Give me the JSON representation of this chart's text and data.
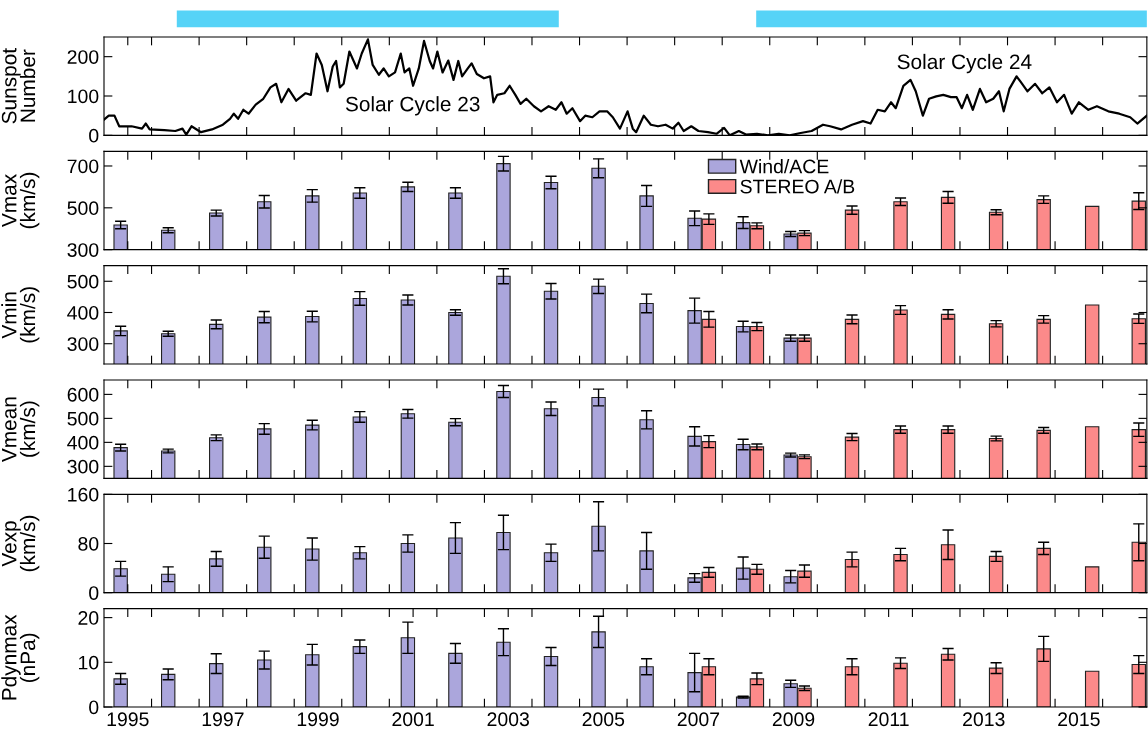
{
  "chart_data": [
    {
      "type": "line",
      "ylabel": "Sunspot\nNumber",
      "xlim": [
        1994.5,
        2016.43
      ],
      "ylim": [
        0,
        250
      ],
      "yticks": [
        0,
        100,
        200
      ],
      "tick_labels": "y",
      "legend": false,
      "grid": false,
      "xticks": [
        {
          "value": 1995,
          "label": null
        },
        {
          "value": 1995.5,
          "label": null
        },
        {
          "value": 1996.5,
          "label": null
        },
        {
          "value": 1997.5,
          "label": null
        },
        {
          "value": 1998.5,
          "label": null
        },
        {
          "value": 1999.5,
          "label": null
        },
        {
          "value": 2000.5,
          "label": null
        },
        {
          "value": 2001.5,
          "label": null
        },
        {
          "value": 2002.5,
          "label": null
        },
        {
          "value": 2003.5,
          "label": null
        },
        {
          "value": 2004.5,
          "label": null
        },
        {
          "value": 2005.5,
          "label": null
        },
        {
          "value": 2006.5,
          "label": null
        },
        {
          "value": 2007.5,
          "label": null
        },
        {
          "value": 2008.5,
          "label": null
        },
        {
          "value": 2009.5,
          "label": null
        },
        {
          "value": 2010.5,
          "label": null
        },
        {
          "value": 2011.5,
          "label": null
        },
        {
          "value": 2012.5,
          "label": null
        },
        {
          "value": 2013.5,
          "label": null
        },
        {
          "value": 2014.5,
          "label": null
        },
        {
          "value": 2015.5,
          "label": null
        }
      ],
      "annotations": [
        "Solar Cycle 23",
        "Solar Cycle 24"
      ],
      "series": [
        {
          "color": "#000000",
          "x": [
            1994.5,
            1994.6,
            1994.72,
            1994.82,
            1995.08,
            1995.3,
            1995.38,
            1995.46,
            1995.77,
            1996.0,
            1996.15,
            1996.23,
            1996.34,
            1996.54,
            1996.77,
            1997.0,
            1997.15,
            1997.23,
            1997.32,
            1997.43,
            1997.54,
            1997.69,
            1997.85,
            1998.0,
            1998.12,
            1998.23,
            1998.38,
            1998.54,
            1998.74,
            1998.85,
            1998.97,
            1999.08,
            1999.2,
            1999.31,
            1999.38,
            1999.46,
            1999.54,
            1999.66,
            1999.82,
            1999.92,
            2000.05,
            2000.15,
            2000.28,
            2000.38,
            2000.49,
            2000.62,
            2000.74,
            2000.82,
            2000.92,
            2001.0,
            2001.12,
            2001.23,
            2001.35,
            2001.42,
            2001.51,
            2001.62,
            2001.74,
            2001.85,
            2001.95,
            2002.03,
            2002.15,
            2002.23,
            2002.34,
            2002.49,
            2002.62,
            2002.69,
            2002.77,
            2002.92,
            2003.03,
            2003.15,
            2003.26,
            2003.38,
            2003.54,
            2003.69,
            2003.85,
            2004.0,
            2004.12,
            2004.23,
            2004.35,
            2004.51,
            2004.62,
            2004.77,
            2004.92,
            2005.08,
            2005.2,
            2005.35,
            2005.51,
            2005.62,
            2005.69,
            2005.85,
            2006.0,
            2006.15,
            2006.31,
            2006.46,
            2006.58,
            2006.69,
            2006.85,
            2007.0,
            2007.2,
            2007.38,
            2007.54,
            2007.66,
            2007.85,
            2008.0,
            2008.23,
            2008.46,
            2008.69,
            2008.92,
            2009.15,
            2009.38,
            2009.62,
            2009.77,
            2010.0,
            2010.23,
            2010.46,
            2010.62,
            2010.77,
            2010.92,
            2011.05,
            2011.15,
            2011.31,
            2011.46,
            2011.57,
            2011.72,
            2011.85,
            2012.0,
            2012.15,
            2012.31,
            2012.43,
            2012.54,
            2012.65,
            2012.77,
            2012.92,
            2013.05,
            2013.2,
            2013.32,
            2013.42,
            2013.54,
            2013.69,
            2013.77,
            2013.92,
            2014.08,
            2014.23,
            2014.38,
            2014.54,
            2014.69,
            2014.85,
            2015.0,
            2015.2,
            2015.38,
            2015.62,
            2015.85,
            2016.08,
            2016.23,
            2016.43
          ],
          "values": [
            40,
            50,
            50,
            23,
            23,
            17,
            30,
            15,
            13,
            11,
            17,
            2,
            23,
            8,
            15,
            27,
            42,
            55,
            42,
            65,
            55,
            78,
            93,
            122,
            131,
            84,
            118,
            88,
            107,
            103,
            208,
            179,
            112,
            175,
            189,
            122,
            131,
            213,
            170,
            208,
            244,
            179,
            154,
            170,
            150,
            160,
            208,
            160,
            170,
            126,
            170,
            240,
            189,
            170,
            213,
            160,
            190,
            141,
            189,
            150,
            170,
            183,
            156,
            145,
            150,
            84,
            103,
            107,
            126,
            103,
            80,
            93,
            74,
            61,
            74,
            65,
            84,
            55,
            69,
            36,
            50,
            46,
            61,
            61,
            46,
            17,
            61,
            17,
            8,
            50,
            27,
            23,
            27,
            17,
            32,
            11,
            23,
            11,
            8,
            4,
            19,
            0,
            11,
            2,
            4,
            0,
            4,
            0,
            6,
            11,
            27,
            23,
            15,
            27,
            36,
            30,
            65,
            61,
            84,
            69,
            126,
            141,
            112,
            50,
            93,
            99,
            103,
            97,
            97,
            69,
            103,
            65,
            118,
            84,
            93,
            112,
            61,
            118,
            150,
            137,
            112,
            131,
            107,
            122,
            84,
            103,
            55,
            84,
            65,
            74,
            61,
            55,
            46,
            30,
            50
          ]
        }
      ]
    },
    {
      "type": "bar",
      "ylabel": "Vmax\n(km/s)",
      "xlim": [
        1994.5,
        2016.43
      ],
      "ylim": [
        300,
        770
      ],
      "yticks": [
        300,
        500,
        700
      ],
      "tick_labels": "y",
      "legend": "top",
      "grid": false,
      "xticks": [
        {
          "value": 1995,
          "label": null
        },
        {
          "value": 1995.5,
          "label": null
        },
        {
          "value": 1996.5,
          "label": null
        },
        {
          "value": 1997.5,
          "label": null
        },
        {
          "value": 1998.5,
          "label": null
        },
        {
          "value": 1999.5,
          "label": null
        },
        {
          "value": 2000.5,
          "label": null
        },
        {
          "value": 2001.5,
          "label": null
        },
        {
          "value": 2002.5,
          "label": null
        },
        {
          "value": 2003.5,
          "label": null
        },
        {
          "value": 2004.5,
          "label": null
        },
        {
          "value": 2005.5,
          "label": null
        },
        {
          "value": 2006.5,
          "label": null
        },
        {
          "value": 2007.5,
          "label": null
        },
        {
          "value": 2008.5,
          "label": null
        },
        {
          "value": 2009.5,
          "label": null
        },
        {
          "value": 2010.5,
          "label": null
        },
        {
          "value": 2011.5,
          "label": null
        },
        {
          "value": 2012.5,
          "label": null
        },
        {
          "value": 2013.5,
          "label": null
        },
        {
          "value": 2014.5,
          "label": null
        },
        {
          "value": 2015.5,
          "label": null
        }
      ],
      "series": [
        {
          "name": "Wind/ACE",
          "color": "#aba6dc",
          "x": [
            1994.85,
            1995.85,
            1996.86,
            1997.87,
            1998.88,
            1999.88,
            2000.89,
            2001.89,
            2002.9,
            2003.9,
            2004.9,
            2005.91,
            2006.92,
            2007.94,
            2008.94
          ],
          "values": [
            418,
            393,
            475,
            529,
            557,
            571,
            600,
            571,
            711,
            621,
            689,
            557,
            450,
            429,
            375
          ],
          "errors": [
            18,
            12,
            14,
            30,
            30,
            25,
            22,
            25,
            35,
            30,
            45,
            50,
            35,
            28,
            12
          ]
        },
        {
          "name": "STEREO A/B",
          "color": "#fc8a8a",
          "x": [
            2007.22,
            2008.23,
            2009.23,
            2010.23,
            2011.25,
            2012.25,
            2013.26,
            2014.26,
            2015.28,
            2016.26
          ],
          "values": [
            446,
            414,
            379,
            489,
            529,
            550,
            479,
            539,
            507,
            532
          ],
          "errors": [
            25,
            14,
            12,
            20,
            18,
            28,
            12,
            18,
            null,
            40
          ]
        }
      ]
    },
    {
      "type": "bar",
      "ylabel": "Vmin\n(km/s)",
      "xlim": [
        1994.5,
        2016.43
      ],
      "ylim": [
        235,
        550
      ],
      "yticks": [
        300,
        400,
        500
      ],
      "tick_labels": "y",
      "legend": false,
      "grid": false,
      "xticks": [
        {
          "value": 1995,
          "label": null
        },
        {
          "value": 1995.5,
          "label": null
        },
        {
          "value": 1996.5,
          "label": null
        },
        {
          "value": 1997.5,
          "label": null
        },
        {
          "value": 1998.5,
          "label": null
        },
        {
          "value": 1999.5,
          "label": null
        },
        {
          "value": 2000.5,
          "label": null
        },
        {
          "value": 2001.5,
          "label": null
        },
        {
          "value": 2002.5,
          "label": null
        },
        {
          "value": 2003.5,
          "label": null
        },
        {
          "value": 2004.5,
          "label": null
        },
        {
          "value": 2005.5,
          "label": null
        },
        {
          "value": 2006.5,
          "label": null
        },
        {
          "value": 2007.5,
          "label": null
        },
        {
          "value": 2008.5,
          "label": null
        },
        {
          "value": 2009.5,
          "label": null
        },
        {
          "value": 2010.5,
          "label": null
        },
        {
          "value": 2011.5,
          "label": null
        },
        {
          "value": 2012.5,
          "label": null
        },
        {
          "value": 2013.5,
          "label": null
        },
        {
          "value": 2014.5,
          "label": null
        },
        {
          "value": 2015.5,
          "label": null
        }
      ],
      "series": [
        {
          "color": "#aba6dc",
          "x": [
            1994.85,
            1995.85,
            1996.86,
            1997.87,
            1998.88,
            1999.88,
            2000.89,
            2001.89,
            2002.9,
            2003.9,
            2004.9,
            2005.91,
            2006.92,
            2007.94,
            2008.94
          ],
          "values": [
            341,
            332,
            362,
            385,
            387,
            445,
            440,
            400,
            516,
            468,
            484,
            429,
            406,
            355,
            318
          ],
          "errors": [
            15,
            8,
            14,
            18,
            17,
            22,
            16,
            9,
            24,
            25,
            23,
            30,
            40,
            17,
            10
          ]
        },
        {
          "color": "#fc8a8a",
          "x": [
            2007.22,
            2008.23,
            2009.23,
            2010.23,
            2011.25,
            2012.25,
            2013.26,
            2014.26,
            2015.28,
            2016.26
          ],
          "values": [
            378,
            355,
            318,
            378,
            408,
            394,
            364,
            378,
            424,
            380
          ],
          "errors": [
            25,
            13,
            10,
            14,
            14,
            15,
            10,
            12,
            null,
            15
          ]
        }
      ]
    },
    {
      "type": "bar",
      "ylabel": "Vmean\n(km/s)",
      "xlim": [
        1994.5,
        2016.43
      ],
      "ylim": [
        250,
        660
      ],
      "yticks": [
        300,
        400,
        500,
        600
      ],
      "tick_labels": "y",
      "legend": false,
      "grid": false,
      "xticks": [
        {
          "value": 1995,
          "label": null
        },
        {
          "value": 1995.5,
          "label": null
        },
        {
          "value": 1996.5,
          "label": null
        },
        {
          "value": 1997.5,
          "label": null
        },
        {
          "value": 1998.5,
          "label": null
        },
        {
          "value": 1999.5,
          "label": null
        },
        {
          "value": 2000.5,
          "label": null
        },
        {
          "value": 2001.5,
          "label": null
        },
        {
          "value": 2002.5,
          "label": null
        },
        {
          "value": 2003.5,
          "label": null
        },
        {
          "value": 2004.5,
          "label": null
        },
        {
          "value": 2005.5,
          "label": null
        },
        {
          "value": 2006.5,
          "label": null
        },
        {
          "value": 2007.5,
          "label": null
        },
        {
          "value": 2008.5,
          "label": null
        },
        {
          "value": 2009.5,
          "label": null
        },
        {
          "value": 2010.5,
          "label": null
        },
        {
          "value": 2011.5,
          "label": null
        },
        {
          "value": 2012.5,
          "label": null
        },
        {
          "value": 2013.5,
          "label": null
        },
        {
          "value": 2014.5,
          "label": null
        },
        {
          "value": 2015.5,
          "label": null
        }
      ],
      "series": [
        {
          "color": "#aba6dc",
          "x": [
            1994.85,
            1995.85,
            1996.86,
            1997.87,
            1998.88,
            1999.88,
            2000.89,
            2001.89,
            2002.9,
            2003.9,
            2004.9,
            2005.91,
            2006.92,
            2007.94,
            2008.94
          ],
          "values": [
            378,
            364,
            419,
            456,
            472,
            506,
            519,
            484,
            612,
            540,
            587,
            494,
            425,
            391,
            347
          ],
          "errors": [
            14,
            8,
            12,
            22,
            20,
            22,
            18,
            15,
            25,
            28,
            35,
            38,
            40,
            22,
            8
          ]
        },
        {
          "color": "#fc8a8a",
          "x": [
            2007.22,
            2008.23,
            2009.23,
            2010.23,
            2011.25,
            2012.25,
            2013.26,
            2014.26,
            2015.28,
            2016.26
          ],
          "values": [
            403,
            381,
            340,
            422,
            453,
            453,
            416,
            450,
            465,
            453
          ],
          "errors": [
            25,
            12,
            8,
            15,
            15,
            15,
            10,
            12,
            null,
            28
          ]
        }
      ]
    },
    {
      "type": "bar",
      "ylabel": "Vexp\n(km/s)",
      "xlim": [
        1994.5,
        2016.43
      ],
      "ylim": [
        0,
        160
      ],
      "yticks": [
        0,
        80,
        160
      ],
      "tick_labels": "y",
      "legend": false,
      "grid": false,
      "xticks": [
        {
          "value": 1995,
          "label": null
        },
        {
          "value": 1995.5,
          "label": null
        },
        {
          "value": 1996.5,
          "label": null
        },
        {
          "value": 1997.5,
          "label": null
        },
        {
          "value": 1998.5,
          "label": null
        },
        {
          "value": 1999.5,
          "label": null
        },
        {
          "value": 2000.5,
          "label": null
        },
        {
          "value": 2001.5,
          "label": null
        },
        {
          "value": 2002.5,
          "label": null
        },
        {
          "value": 2003.5,
          "label": null
        },
        {
          "value": 2004.5,
          "label": null
        },
        {
          "value": 2005.5,
          "label": null
        },
        {
          "value": 2006.5,
          "label": null
        },
        {
          "value": 2007.5,
          "label": null
        },
        {
          "value": 2008.5,
          "label": null
        },
        {
          "value": 2009.5,
          "label": null
        },
        {
          "value": 2010.5,
          "label": null
        },
        {
          "value": 2011.5,
          "label": null
        },
        {
          "value": 2012.5,
          "label": null
        },
        {
          "value": 2013.5,
          "label": null
        },
        {
          "value": 2014.5,
          "label": null
        },
        {
          "value": 2015.5,
          "label": null
        }
      ],
      "series": [
        {
          "color": "#aba6dc",
          "x": [
            1994.85,
            1995.85,
            1996.86,
            1997.87,
            1998.88,
            1999.88,
            2000.89,
            2001.89,
            2002.9,
            2003.9,
            2004.9,
            2005.91,
            2006.92,
            2007.94,
            2008.94
          ],
          "values": [
            39,
            30,
            55,
            74,
            71,
            65,
            80,
            89,
            98,
            65,
            108,
            68,
            24,
            40,
            26
          ],
          "errors": [
            12,
            12,
            12,
            18,
            18,
            10,
            14,
            25,
            28,
            14,
            40,
            30,
            7,
            18,
            10
          ]
        },
        {
          "color": "#fc8a8a",
          "x": [
            2007.22,
            2008.23,
            2009.23,
            2010.23,
            2011.25,
            2012.25,
            2013.26,
            2014.26,
            2015.28,
            2016.26
          ],
          "values": [
            33,
            38,
            35,
            54,
            62,
            78,
            59,
            72,
            42,
            82
          ],
          "errors": [
            8,
            8,
            10,
            12,
            10,
            24,
            8,
            10,
            null,
            30
          ]
        }
      ]
    },
    {
      "type": "bar",
      "ylabel": "Pdynmax\n(nPa)",
      "xlim": [
        1994.5,
        2016.43
      ],
      "ylim": [
        0,
        22
      ],
      "yticks": [
        0,
        10,
        20
      ],
      "legend": false,
      "grid": false,
      "xticks": [
        {
          "value": 1995,
          "label": "1995"
        },
        {
          "value": 1995.5,
          "label": null
        },
        {
          "value": 1996.5,
          "label": null
        },
        {
          "value": 1997,
          "label": "1997"
        },
        {
          "value": 1997.5,
          "label": null
        },
        {
          "value": 1998.5,
          "label": null
        },
        {
          "value": 1999,
          "label": "1999"
        },
        {
          "value": 1999.5,
          "label": null
        },
        {
          "value": 2000.5,
          "label": null
        },
        {
          "value": 2001,
          "label": "2001"
        },
        {
          "value": 2001.5,
          "label": null
        },
        {
          "value": 2002.5,
          "label": null
        },
        {
          "value": 2003,
          "label": "2003"
        },
        {
          "value": 2003.5,
          "label": null
        },
        {
          "value": 2004.5,
          "label": null
        },
        {
          "value": 2005,
          "label": "2005"
        },
        {
          "value": 2005.5,
          "label": null
        },
        {
          "value": 2006.5,
          "label": null
        },
        {
          "value": 2007,
          "label": "2007"
        },
        {
          "value": 2007.5,
          "label": null
        },
        {
          "value": 2008.5,
          "label": null
        },
        {
          "value": 2009,
          "label": "2009"
        },
        {
          "value": 2009.5,
          "label": null
        },
        {
          "value": 2010.5,
          "label": null
        },
        {
          "value": 2011,
          "label": "2011"
        },
        {
          "value": 2011.5,
          "label": null
        },
        {
          "value": 2012.5,
          "label": null
        },
        {
          "value": 2013,
          "label": "2013"
        },
        {
          "value": 2013.5,
          "label": null
        },
        {
          "value": 2014.5,
          "label": null
        },
        {
          "value": 2015,
          "label": "2015"
        },
        {
          "value": 2015.5,
          "label": null
        }
      ],
      "series": [
        {
          "color": "#aba6dc",
          "x": [
            1994.85,
            1995.85,
            1996.86,
            1997.87,
            1998.88,
            1999.88,
            2000.89,
            2001.89,
            2002.9,
            2003.9,
            2004.9,
            2005.91,
            2006.92,
            2007.94,
            2008.94
          ],
          "values": [
            6.3,
            7.3,
            9.7,
            10.5,
            11.7,
            13.5,
            15.5,
            12,
            14.5,
            11.3,
            16.8,
            9,
            7.7,
            2.2,
            5.2
          ],
          "errors": [
            1.2,
            1.2,
            2.2,
            2,
            2.3,
            1.5,
            3.5,
            2.2,
            3,
            2,
            3.5,
            1.8,
            4.3,
            0.2,
            0.8
          ]
        },
        {
          "color": "#fc8a8a",
          "x": [
            2007.22,
            2008.23,
            2009.23,
            2010.23,
            2011.25,
            2012.25,
            2013.26,
            2014.26,
            2015.28,
            2016.26
          ],
          "values": [
            9,
            6.3,
            4.2,
            9,
            9.8,
            11.8,
            8.7,
            13,
            8,
            9.5
          ],
          "errors": [
            1.8,
            1.3,
            0.5,
            1.8,
            1.2,
            1.3,
            1.2,
            2.8,
            null,
            2
          ]
        }
      ]
    }
  ]
}
